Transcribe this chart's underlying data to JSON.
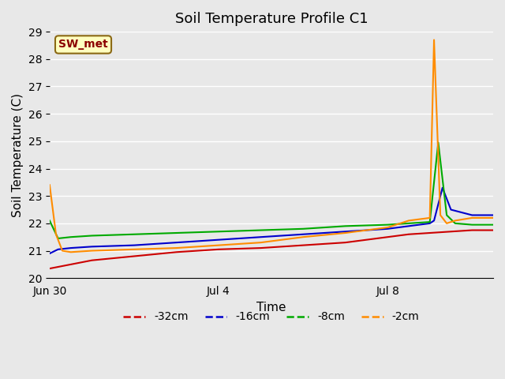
{
  "title": "Soil Temperature Profile C1",
  "xlabel": "Time",
  "ylabel": "Soil Temperature (C)",
  "ylim": [
    20.0,
    29.0
  ],
  "yticks": [
    20.0,
    21.0,
    22.0,
    23.0,
    24.0,
    25.0,
    26.0,
    27.0,
    28.0,
    29.0
  ],
  "xtick_labels": [
    "Jun 30",
    "Jul 4",
    "Jul 8",
    ""
  ],
  "annotation_label": "SW_met",
  "annotation_color": "#8B0000",
  "annotation_bg": "#FFFFC0",
  "series": {
    "-32cm": {
      "color": "#CC0000",
      "x": [
        0,
        0.5,
        1,
        2,
        3,
        4,
        5,
        6,
        7,
        8,
        8.5,
        9,
        9.5,
        10,
        10.2,
        10.5
      ],
      "y": [
        20.35,
        20.5,
        20.65,
        20.8,
        20.95,
        21.05,
        21.1,
        21.2,
        21.3,
        21.5,
        21.6,
        21.65,
        21.7,
        21.75,
        21.75,
        21.75
      ]
    },
    "-16cm": {
      "color": "#0000CC",
      "x": [
        0,
        0.2,
        0.5,
        1,
        2,
        3,
        4,
        5,
        6,
        7,
        8,
        8.5,
        9,
        9.1,
        9.3,
        9.5,
        10,
        10.2,
        10.5
      ],
      "y": [
        20.9,
        21.05,
        21.1,
        21.15,
        21.2,
        21.3,
        21.4,
        21.5,
        21.6,
        21.7,
        21.8,
        21.9,
        22.0,
        22.1,
        23.3,
        22.5,
        22.3,
        22.3,
        22.3
      ]
    },
    "-8cm": {
      "color": "#00AA00",
      "x": [
        0,
        0.2,
        0.5,
        1,
        2,
        3,
        4,
        5,
        6,
        7,
        8,
        8.5,
        9,
        9.2,
        9.4,
        9.6,
        10,
        10.2,
        10.5
      ],
      "y": [
        22.1,
        21.45,
        21.5,
        21.55,
        21.6,
        21.65,
        21.7,
        21.75,
        21.8,
        21.9,
        21.95,
        22.0,
        22.05,
        24.95,
        22.3,
        22.0,
        21.95,
        21.95,
        21.95
      ]
    },
    "-2cm": {
      "color": "#FF8C00",
      "x": [
        0,
        0.15,
        0.3,
        0.5,
        1,
        2,
        3,
        4,
        5,
        6,
        7,
        8,
        8.5,
        9,
        9.1,
        9.25,
        9.4,
        9.6,
        10,
        10.2,
        10.5
      ],
      "y": [
        23.4,
        21.6,
        21.0,
        20.95,
        21.0,
        21.05,
        21.1,
        21.2,
        21.3,
        21.5,
        21.65,
        21.85,
        22.1,
        22.2,
        28.7,
        22.3,
        22.0,
        22.1,
        22.2,
        22.2,
        22.2
      ]
    }
  },
  "n_days": 10.5,
  "xtick_positions": [
    0,
    4,
    8,
    10.5
  ],
  "legend_entries": [
    {
      "label": "-32cm",
      "color": "#CC0000"
    },
    {
      "label": "-16cm",
      "color": "#0000CC"
    },
    {
      "label": "-8cm",
      "color": "#00AA00"
    },
    {
      "label": "-2cm",
      "color": "#FF8C00"
    }
  ],
  "background_color": "#E8E8E8",
  "plot_bg_color": "#E8E8E8",
  "grid_color": "#ffffff",
  "title_fontsize": 13,
  "axis_label_fontsize": 11,
  "tick_fontsize": 10
}
